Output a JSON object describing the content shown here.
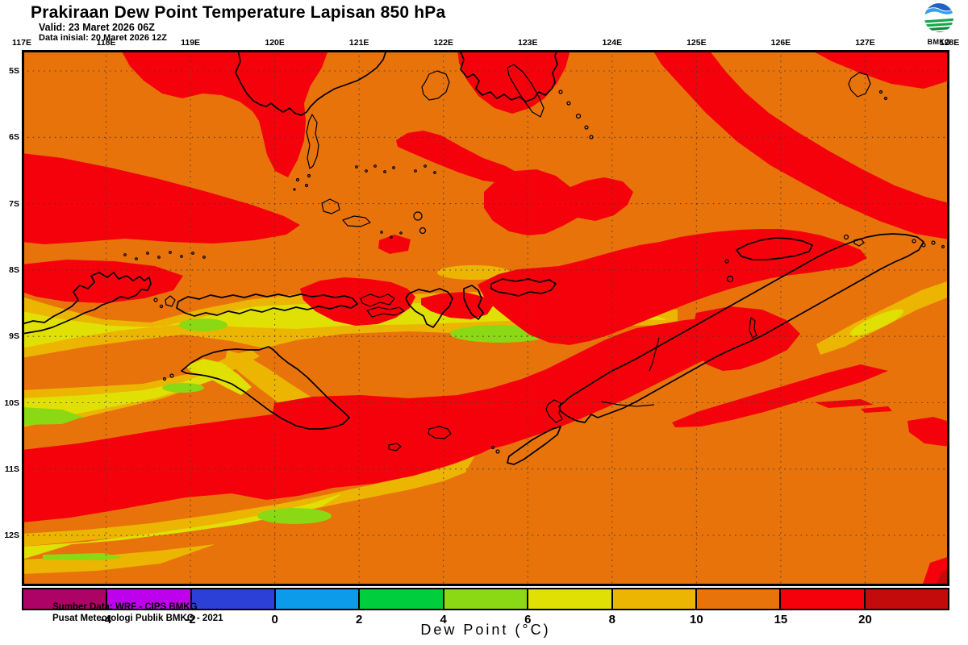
{
  "header": {
    "title": "Prakiraan Dew Point Temperature Lapisan 850 hPa",
    "valid": "Valid: 23 Maret 2026 06Z",
    "init": "Data inisial: 20 Maret 2026 12Z"
  },
  "logo": {
    "org": "BMKG"
  },
  "map": {
    "lon_labels": [
      "117E",
      "118E",
      "119E",
      "120E",
      "121E",
      "122E",
      "123E",
      "124E",
      "125E",
      "126E",
      "127E",
      "128E"
    ],
    "lat_labels": [
      "5S",
      "6S",
      "7S",
      "8S",
      "9S",
      "10S",
      "11S",
      "12S"
    ],
    "source_line1": "Sumber Data: WRF - CIPS BMKG",
    "source_line2": "Pusat Meteorologi Publik BMKG - 2021"
  },
  "colorbar": {
    "title": "Dew Point (°C)",
    "tick_labels": [
      "-4",
      "-2",
      "0",
      "2",
      "4",
      "6",
      "8",
      "10",
      "15",
      "20"
    ],
    "segment_colors": [
      "#AD0266",
      "#BE01EC",
      "#2C40D8",
      "#0C9BEA",
      "#00CE3C",
      "#8BD814",
      "#E0E005",
      "#EBB502",
      "#E8730B",
      "#F5010B",
      "#C40B0B"
    ],
    "map_fill_colors": {
      "orange_10_15": "#E8730B",
      "red_15_20": "#F5010B",
      "darkred_gt20": "#C40B0B",
      "gold_8_10": "#EBB502",
      "yellow_6_8": "#E0E005",
      "green_4_6": "#8BD814"
    }
  }
}
